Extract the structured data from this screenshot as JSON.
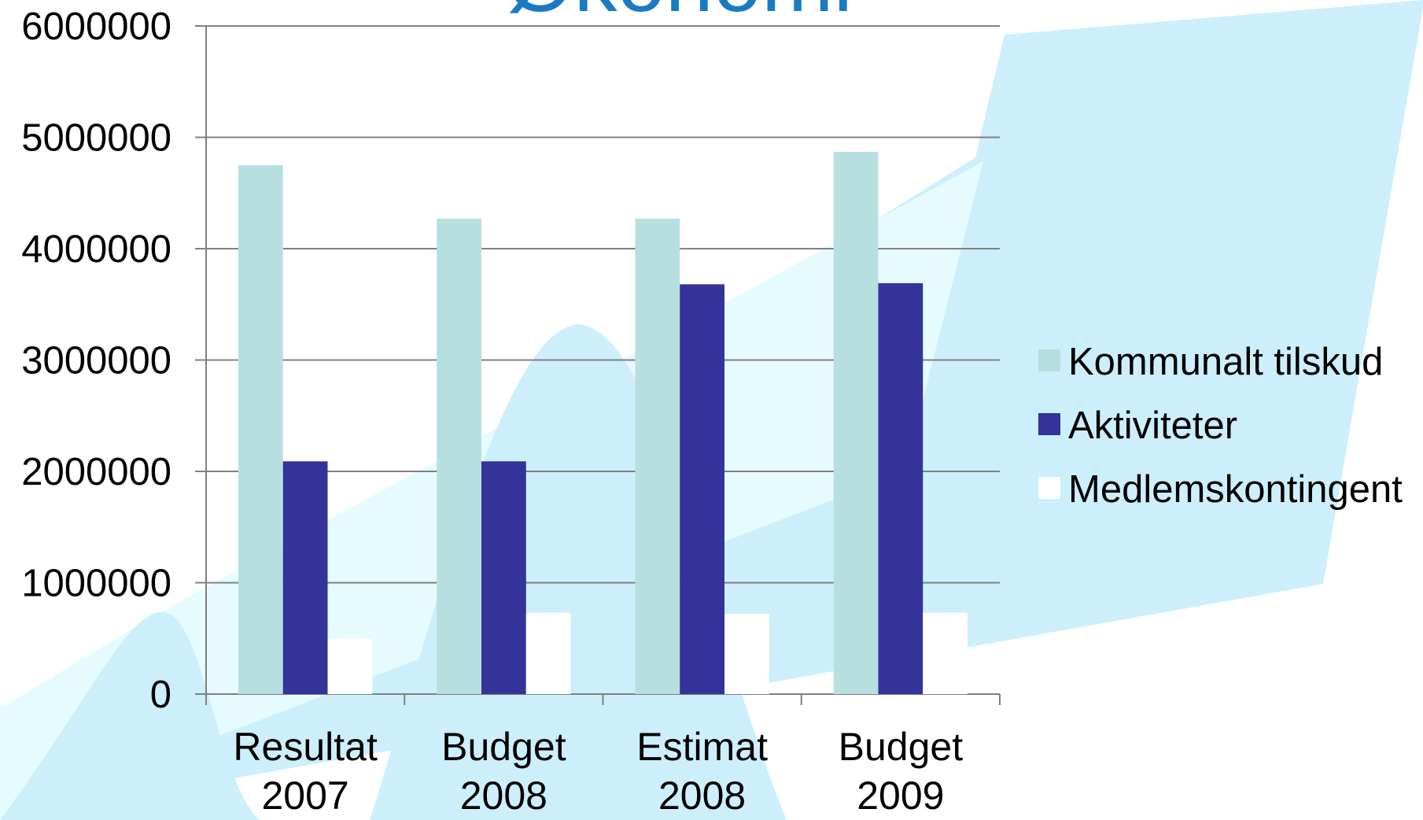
{
  "chart_data": {
    "type": "bar",
    "title": "Økonomi",
    "categories": [
      "Resultat 2007",
      "Budget 2008",
      "Estimat 2008",
      "Budget 2009"
    ],
    "series": [
      {
        "name": "Kommunalt tilskud",
        "color": "#b8dfe0",
        "values": [
          4750000,
          4270000,
          4270000,
          4870000
        ]
      },
      {
        "name": "Aktiviteter",
        "color": "#333399",
        "values": [
          2090000,
          2090000,
          3680000,
          3690000
        ]
      },
      {
        "name": "Medlemskontingent",
        "color": "#ffffff",
        "values": [
          500000,
          730000,
          720000,
          730000
        ]
      }
    ],
    "ylim": [
      0,
      6000000
    ],
    "yticks": [
      0,
      1000000,
      2000000,
      3000000,
      4000000,
      5000000,
      6000000
    ],
    "grid": true,
    "legend": "right"
  }
}
